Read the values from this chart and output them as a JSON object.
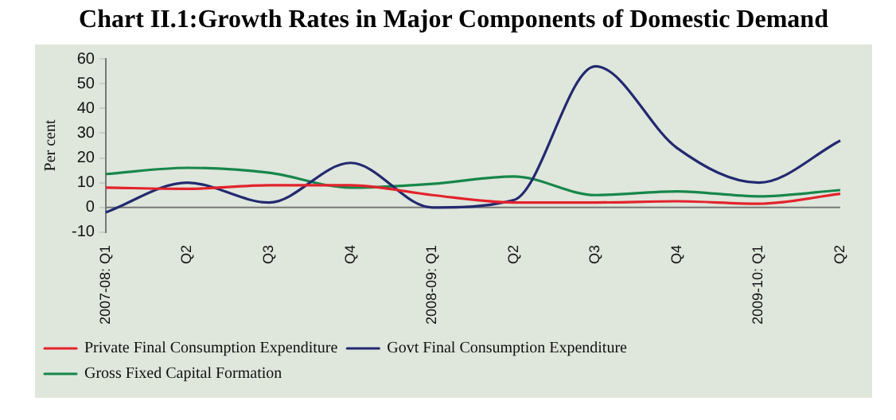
{
  "chart_data": {
    "type": "line",
    "title": "Chart II.1:Growth Rates in Major Components of Domestic Demand",
    "ylabel": "Per cent",
    "categories": [
      "2007-08: Q1",
      "Q2",
      "Q3",
      "Q4",
      "2008-09: Q1",
      "Q2",
      "Q3",
      "Q4",
      "2009-10: Q1",
      "Q2"
    ],
    "series": [
      {
        "name": "Private Final Consumption Expenditure",
        "color": "#e3232c",
        "values": [
          8,
          7.5,
          9,
          9,
          5,
          2,
          2,
          2.5,
          1.5,
          5.5
        ]
      },
      {
        "name": "Govt Final Consumption Expenditure",
        "color": "#23296f",
        "values": [
          -2,
          10,
          2,
          18,
          0,
          3,
          57,
          24,
          10,
          27
        ]
      },
      {
        "name": "Gross Fixed Capital Formation",
        "color": "#17874a",
        "values": [
          13.5,
          16,
          14,
          8,
          9.5,
          12.5,
          5,
          6.5,
          4.5,
          7
        ]
      }
    ],
    "ref_lines": [
      {
        "axis": "y",
        "value": 0,
        "color": "#777777"
      }
    ],
    "ylim": [
      -10,
      60
    ],
    "yticks": [
      -10,
      0,
      10,
      20,
      30,
      40,
      50,
      60
    ],
    "grid": false,
    "legend": "bottom",
    "marker": "none",
    "line_style": "solid"
  }
}
